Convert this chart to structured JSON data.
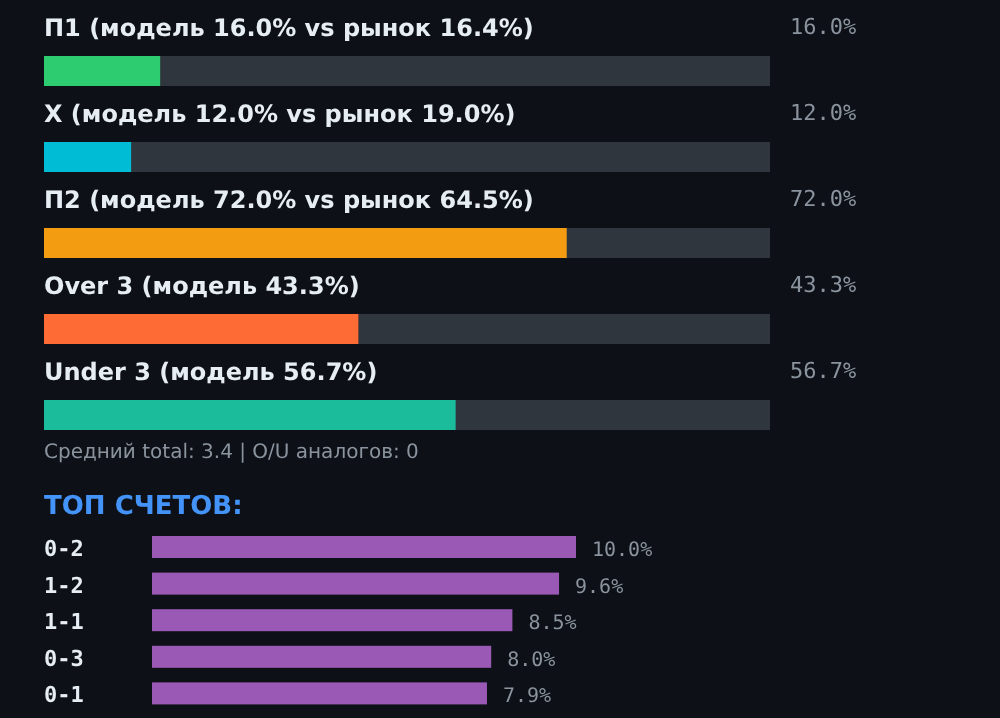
{
  "chart_data": [
    {
      "type": "bar",
      "orientation": "horizontal",
      "categories": [
        "П1 (модель 16.0% vs рынок 16.4%)",
        "X  (модель 12.0% vs рынок 19.0%)",
        "П2 (модель 72.0% vs рынок 64.5%)",
        "Over 3 (модель 43.3%)",
        "Under 3 (модель 56.7%)"
      ],
      "values": [
        16.0,
        12.0,
        72.0,
        43.3,
        56.7
      ],
      "colors": [
        "#2ecc71",
        "#00bcd4",
        "#f39c12",
        "#ff6b35",
        "#1abc9c"
      ],
      "value_labels": [
        "16.0%",
        "12.0%",
        "72.0%",
        "43.3%",
        "56.7%"
      ],
      "xlim": [
        0,
        100
      ],
      "annotations": [
        "Средний total: 3.4  |  O/U аналогов: 0"
      ]
    },
    {
      "type": "bar",
      "orientation": "horizontal",
      "title": "ТОП СЧЕТОВ:",
      "categories": [
        "0-2",
        "1-2",
        "1-1",
        "0-3",
        "0-1"
      ],
      "values": [
        10.0,
        9.6,
        8.5,
        8.0,
        7.9
      ],
      "color": "#9b59b6",
      "value_labels": [
        "10.0%",
        "9.6%",
        "8.5%",
        "8.0%",
        "7.9%"
      ],
      "xlim": [
        0,
        10
      ]
    }
  ]
}
